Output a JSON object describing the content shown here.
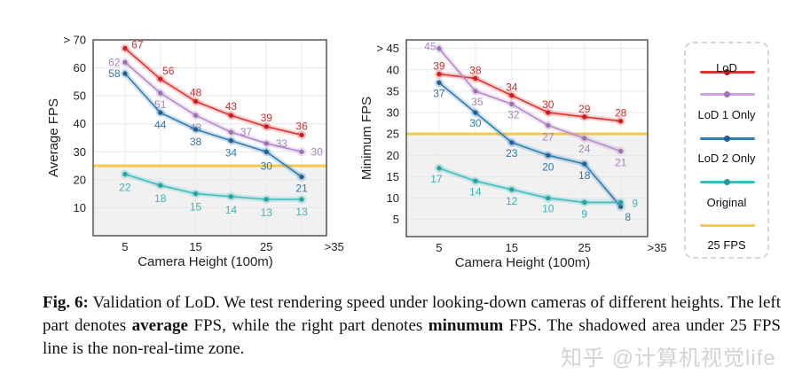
{
  "chart_data": [
    {
      "type": "line",
      "ylabel": "Average FPS",
      "xlabel": "Camera Height (100m)",
      "x": [
        5,
        10,
        15,
        20,
        25,
        30
      ],
      "xticks": [
        "5",
        "15",
        "25",
        ">35"
      ],
      "yticks": [
        "10",
        "20",
        "30",
        "40",
        "50",
        "60",
        "> 70"
      ],
      "ylim": [
        0,
        70
      ],
      "threshold": 25,
      "grid": true,
      "series": [
        {
          "name": "LoD",
          "values": [
            67,
            56,
            48,
            43,
            39,
            36
          ]
        },
        {
          "name": "LoD 1 Only",
          "values": [
            62,
            51,
            43,
            37,
            33,
            30
          ]
        },
        {
          "name": "LoD 2 Only",
          "values": [
            58,
            44,
            38,
            34,
            30,
            21
          ]
        },
        {
          "name": "Original",
          "values": [
            22,
            18,
            15,
            14,
            13,
            13
          ]
        }
      ]
    },
    {
      "type": "line",
      "ylabel": "Minimum FPS",
      "xlabel": "Camera Height (100m)",
      "x": [
        5,
        10,
        15,
        20,
        25,
        30
      ],
      "xticks": [
        "5",
        "15",
        "25",
        ">35"
      ],
      "yticks": [
        "5",
        "10",
        "15",
        "20",
        "25",
        "30",
        "35",
        "40",
        "> 45"
      ],
      "ylim": [
        1,
        47
      ],
      "threshold": 25,
      "grid": true,
      "series": [
        {
          "name": "LoD",
          "values": [
            39,
            38,
            34,
            30,
            29,
            28
          ]
        },
        {
          "name": "LoD 1 Only",
          "values": [
            45,
            35,
            32,
            27,
            24,
            21
          ]
        },
        {
          "name": "LoD 2 Only",
          "values": [
            37,
            30,
            23,
            20,
            18,
            8
          ]
        },
        {
          "name": "Original",
          "values": [
            17,
            14,
            12,
            10,
            9,
            9
          ]
        }
      ]
    }
  ],
  "colors": {
    "LoD": "#e0302f",
    "LoD 1 Only": "#b58ac8",
    "LoD 2 Only": "#2f7db5",
    "Original": "#3cbcbc",
    "threshold": "#f6c94a",
    "shade": "#f1f1f1"
  },
  "legend": {
    "placement": "right",
    "items": [
      "LoD",
      "LoD 1 Only",
      "LoD 2 Only",
      "Original",
      "25 FPS"
    ]
  },
  "caption": {
    "label": "Fig. 6:",
    "text1": " Validation of LoD. We test rendering speed under looking-down cameras of different heights. The left part denotes ",
    "bold1": "average",
    "text2": " FPS, while the right part denotes ",
    "bold2": "minumum",
    "text3": " FPS. The shadowed area under 25 FPS line is the non-real-time zone."
  },
  "watermark": "知乎 @计算机视觉life"
}
